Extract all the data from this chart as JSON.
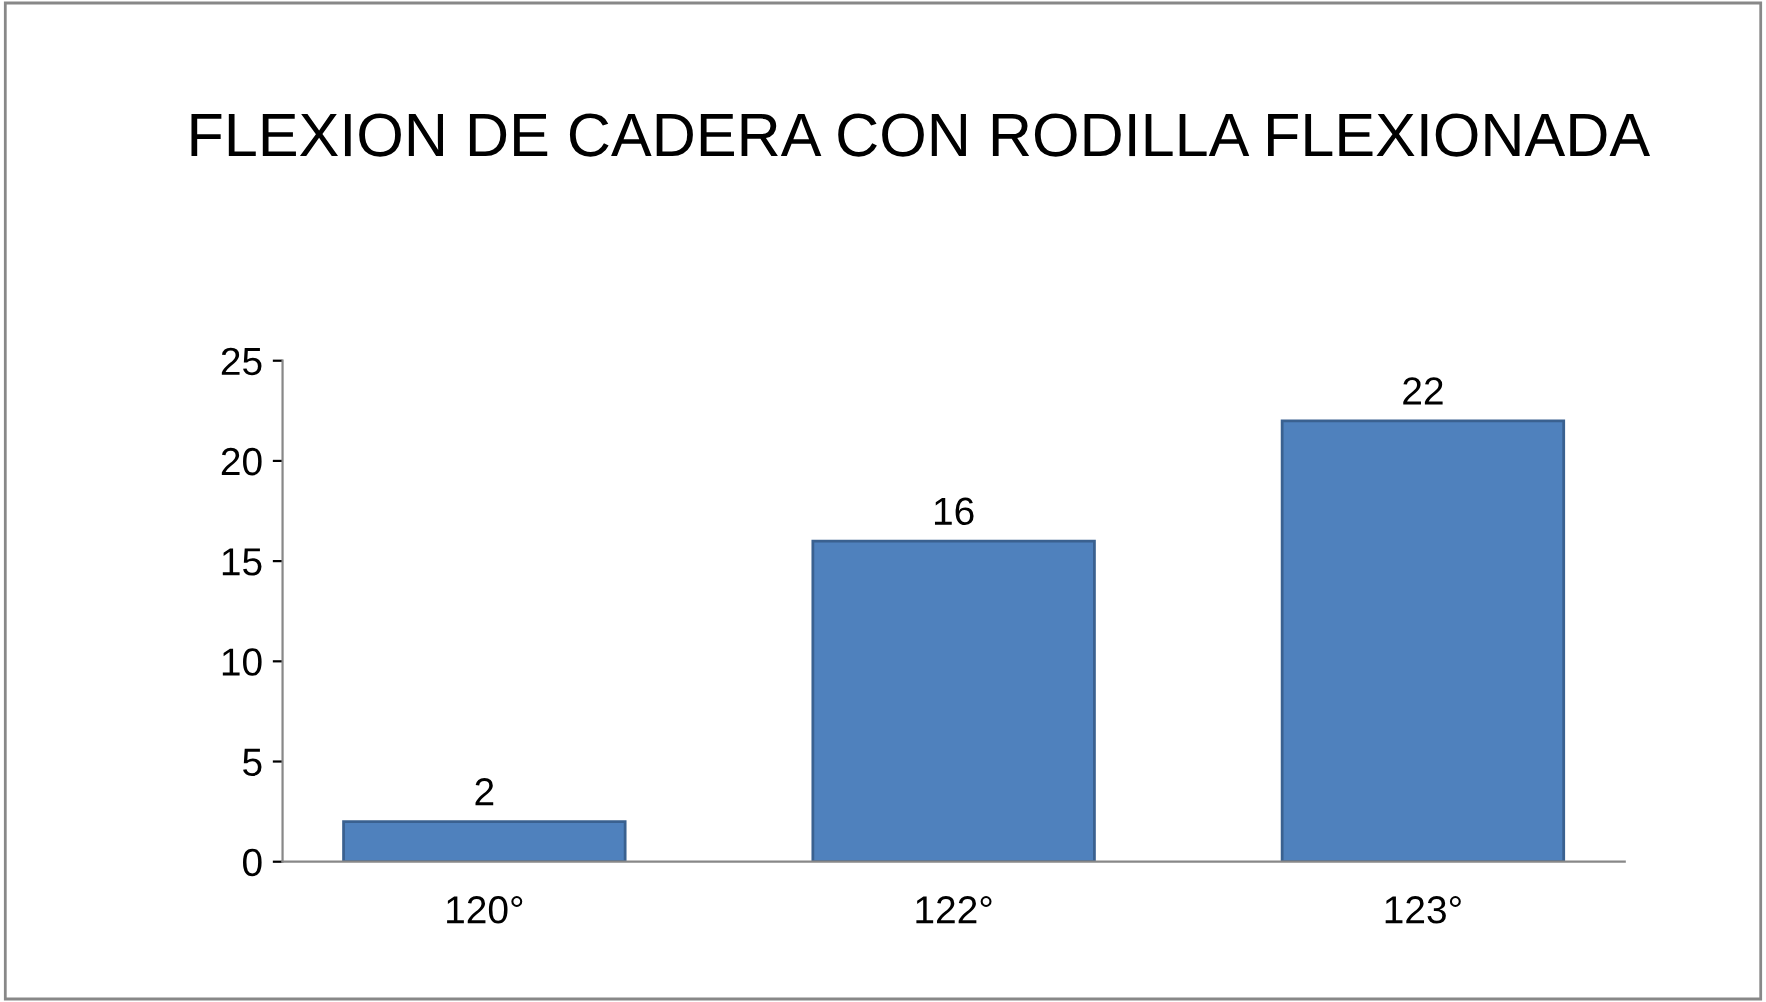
{
  "chart_data": {
    "type": "bar",
    "title": "FLEXION DE CADERA CON RODILLA FLEXIONADA",
    "categories": [
      "120°",
      "122°",
      "123°"
    ],
    "values": [
      2,
      16,
      22
    ],
    "color": "#4f81bd",
    "ylim": [
      0,
      25
    ],
    "yticks": [
      0,
      5,
      10,
      15,
      20,
      25
    ],
    "grid": false,
    "data_labels": true
  }
}
